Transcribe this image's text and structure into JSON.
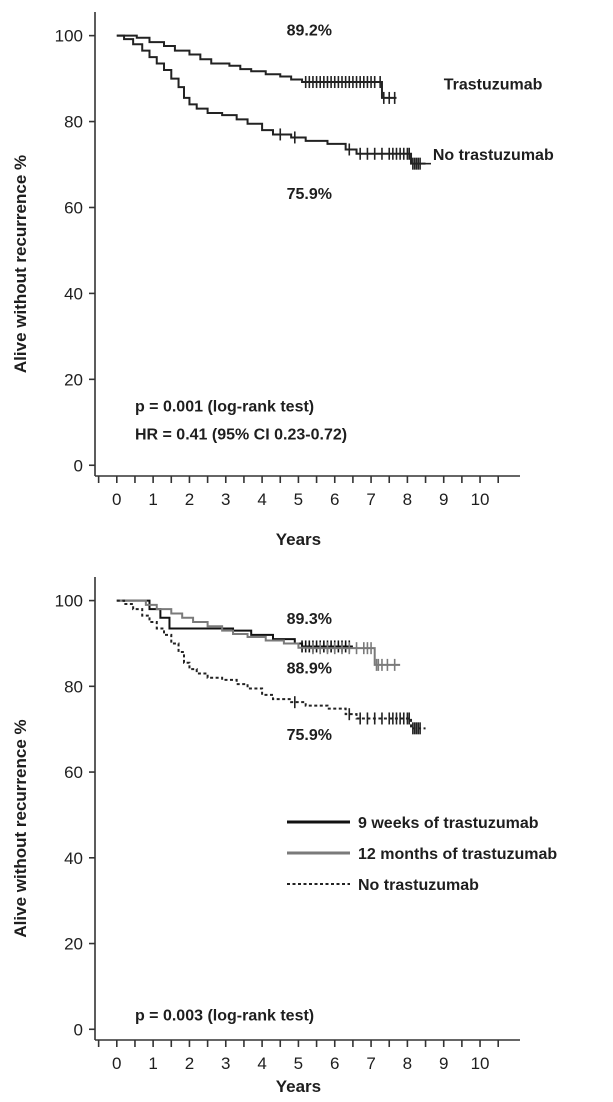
{
  "chart_data": [
    {
      "type": "line",
      "xlabel": "Years",
      "ylabel": "Alive without recurrence %",
      "xlim": [
        -0.6,
        11.1
      ],
      "ylim": [
        -2.5,
        105.5
      ],
      "xticks": [
        "0",
        "1",
        "2",
        "3",
        "4",
        "5",
        "6",
        "7",
        "8",
        "9",
        "10"
      ],
      "yticks": [
        "0",
        "20",
        "40",
        "60",
        "80",
        "100"
      ],
      "grid": false,
      "series": [
        {
          "name": "Trastuzumab",
          "color": "#222222",
          "dash": false,
          "steps": [
            [
              0,
              100
            ],
            [
              0.3,
              100
            ],
            [
              0.55,
              99.5
            ],
            [
              0.9,
              98.5
            ],
            [
              1.3,
              97.6
            ],
            [
              1.6,
              96.5
            ],
            [
              2.0,
              95.6
            ],
            [
              2.3,
              94.5
            ],
            [
              2.6,
              93.5
            ],
            [
              3.1,
              93
            ],
            [
              3.4,
              92.2
            ],
            [
              3.7,
              91.7
            ],
            [
              4.1,
              91
            ],
            [
              4.5,
              90.5
            ],
            [
              4.8,
              89.8
            ],
            [
              5.1,
              89.2
            ],
            [
              7.2,
              89.2
            ],
            [
              7.3,
              85.5
            ],
            [
              7.7,
              85.5
            ]
          ],
          "censor_x": [
            5.2,
            5.3,
            5.4,
            5.5,
            5.6,
            5.7,
            5.8,
            5.9,
            6.0,
            6.1,
            6.2,
            6.3,
            6.4,
            6.5,
            6.6,
            6.7,
            6.8,
            6.9,
            7.0,
            7.1,
            7.25,
            7.35,
            7.5,
            7.65
          ]
        },
        {
          "name": "No trastuzumab",
          "color": "#222222",
          "dash": false,
          "steps": [
            [
              0,
              100
            ],
            [
              0.2,
              99.2
            ],
            [
              0.45,
              98
            ],
            [
              0.7,
              96.5
            ],
            [
              0.9,
              95
            ],
            [
              1.1,
              93.5
            ],
            [
              1.3,
              92
            ],
            [
              1.5,
              90
            ],
            [
              1.7,
              88
            ],
            [
              1.85,
              85.5
            ],
            [
              2.0,
              84
            ],
            [
              2.2,
              83
            ],
            [
              2.5,
              82
            ],
            [
              2.9,
              81.5
            ],
            [
              3.3,
              80.5
            ],
            [
              3.6,
              79.5
            ],
            [
              4.0,
              78
            ],
            [
              4.3,
              77
            ],
            [
              4.8,
              76.3
            ],
            [
              5.2,
              75.5
            ],
            [
              5.8,
              74.8
            ],
            [
              6.3,
              73.5
            ],
            [
              6.6,
              72.5
            ],
            [
              8.0,
              72.5
            ],
            [
              8.1,
              70.2
            ],
            [
              8.5,
              70.2
            ]
          ],
          "censor_x": [
            4.5,
            4.9,
            6.4,
            6.7,
            6.9,
            7.1,
            7.3,
            7.5,
            7.6,
            7.7,
            7.8,
            7.9,
            8.0,
            8.05,
            8.15,
            8.2,
            8.25,
            8.3,
            8.35
          ]
        }
      ],
      "annotations": [
        {
          "text": "89.2%",
          "x": 5.3,
          "y": 100
        },
        {
          "text": "75.9%",
          "x": 5.3,
          "y": 62
        },
        {
          "text": "Trastuzumab",
          "x": 9.0,
          "y": 87.5
        },
        {
          "text": "No trastuzumab",
          "x": 8.7,
          "y": 71
        },
        {
          "text": "p = 0.001 (log-rank test)",
          "x": 0.5,
          "y": 12.5
        },
        {
          "text": "HR = 0.41 (95% CI 0.23-0.72)",
          "x": 0.5,
          "y": 6
        }
      ]
    },
    {
      "type": "line",
      "xlabel": "Years",
      "ylabel": "Alive without recurrence %",
      "xlim": [
        -0.6,
        11.1
      ],
      "ylim": [
        -2.5,
        105.5
      ],
      "xticks": [
        "0",
        "1",
        "2",
        "3",
        "4",
        "5",
        "6",
        "7",
        "8",
        "9",
        "10"
      ],
      "yticks": [
        "0",
        "20",
        "40",
        "60",
        "80",
        "100"
      ],
      "grid": false,
      "series": [
        {
          "name": "9 weeks of trastuzumab",
          "color": "#111111",
          "dash": false,
          "steps": [
            [
              0,
              100
            ],
            [
              0.6,
              100
            ],
            [
              0.9,
              98
            ],
            [
              1.2,
              96
            ],
            [
              1.45,
              93.5
            ],
            [
              2.4,
              93.5
            ],
            [
              3.2,
              93
            ],
            [
              3.7,
              92
            ],
            [
              4.3,
              91
            ],
            [
              4.9,
              90
            ],
            [
              5.1,
              89.3
            ],
            [
              6.5,
              89.3
            ]
          ],
          "censor_x": [
            5.1,
            5.2,
            5.3,
            5.4,
            5.5,
            5.6,
            5.7,
            5.8,
            5.9,
            6.0,
            6.1,
            6.2,
            6.3,
            6.4
          ]
        },
        {
          "name": "12 months of trastuzumab",
          "color": "#7a7a7a",
          "dash": false,
          "steps": [
            [
              0,
              100
            ],
            [
              0.5,
              100
            ],
            [
              0.8,
              99
            ],
            [
              1.1,
              98
            ],
            [
              1.5,
              97
            ],
            [
              1.8,
              96
            ],
            [
              2.1,
              95
            ],
            [
              2.5,
              94
            ],
            [
              2.9,
              93
            ],
            [
              3.2,
              92.2
            ],
            [
              3.6,
              91.5
            ],
            [
              4.1,
              90.7
            ],
            [
              4.6,
              90
            ],
            [
              5.0,
              89
            ],
            [
              5.3,
              88.9
            ],
            [
              7.0,
              88.9
            ],
            [
              7.1,
              85
            ],
            [
              7.8,
              85
            ]
          ],
          "censor_x": [
            5.4,
            5.6,
            5.8,
            6.0,
            6.2,
            6.4,
            6.6,
            6.8,
            6.9,
            7.0,
            7.15,
            7.2,
            7.3,
            7.45,
            7.65
          ]
        },
        {
          "name": "No trastuzumab",
          "color": "#222222",
          "dash": true,
          "steps": [
            [
              0,
              100
            ],
            [
              0.2,
              99.2
            ],
            [
              0.45,
              98
            ],
            [
              0.7,
              96.5
            ],
            [
              0.9,
              95
            ],
            [
              1.1,
              93.5
            ],
            [
              1.3,
              92
            ],
            [
              1.5,
              90
            ],
            [
              1.7,
              88
            ],
            [
              1.85,
              85.5
            ],
            [
              2.0,
              84
            ],
            [
              2.2,
              83
            ],
            [
              2.5,
              82
            ],
            [
              2.9,
              81.5
            ],
            [
              3.3,
              80.5
            ],
            [
              3.6,
              79.5
            ],
            [
              4.0,
              78
            ],
            [
              4.3,
              77
            ],
            [
              4.8,
              76.3
            ],
            [
              5.2,
              75.5
            ],
            [
              5.8,
              74.8
            ],
            [
              6.3,
              73.5
            ],
            [
              6.6,
              72.5
            ],
            [
              8.0,
              72.5
            ],
            [
              8.1,
              70.2
            ],
            [
              8.5,
              70.2
            ]
          ],
          "censor_x": [
            4.9,
            6.4,
            6.7,
            6.9,
            7.1,
            7.3,
            7.5,
            7.6,
            7.7,
            7.8,
            7.9,
            8.0,
            8.05,
            8.15,
            8.2,
            8.25,
            8.3,
            8.35
          ]
        }
      ],
      "annotations": [
        {
          "text": "89.3%",
          "x": 5.3,
          "y": 94.5
        },
        {
          "text": "88.9%",
          "x": 5.3,
          "y": 83
        },
        {
          "text": "75.9%",
          "x": 5.3,
          "y": 67.5
        },
        {
          "text": "p = 0.003 (log-rank test)",
          "x": 0.5,
          "y": 2
        }
      ],
      "legend": {
        "placement": "middle-right",
        "entries": [
          "9 weeks of trastuzumab",
          "12 months of trastuzumab",
          "No trastuzumab"
        ]
      }
    }
  ]
}
